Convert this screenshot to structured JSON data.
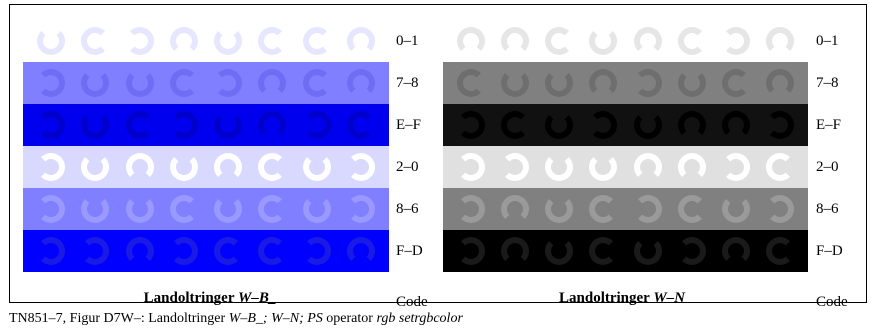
{
  "left_panel": {
    "title_prefix": "Landoltringer ",
    "title_italic": "W–B_",
    "code_label": "Code",
    "rows": [
      {
        "code": "0–1",
        "bg": "#ffffff",
        "ring": "#e6e6ff",
        "gaps": [
          "up",
          "right",
          "left",
          "down",
          "up",
          "right",
          "right",
          "down"
        ]
      },
      {
        "code": "7–8",
        "bg": "#7f7fff",
        "ring": "#6e6ef5",
        "gaps": [
          "left",
          "up",
          "up",
          "right",
          "left",
          "down",
          "right",
          "down"
        ]
      },
      {
        "code": "E–F",
        "bg": "#0000ef",
        "ring": "#0000cc",
        "gaps": [
          "left",
          "up",
          "right",
          "left",
          "up",
          "down",
          "left",
          "right"
        ]
      },
      {
        "code": "2–0",
        "bg": "#d9d9ff",
        "ring": "#ffffff",
        "gaps": [
          "left",
          "up",
          "down",
          "up",
          "down",
          "right",
          "up",
          "left"
        ]
      },
      {
        "code": "8–6",
        "bg": "#7f7fff",
        "ring": "#9999ff",
        "gaps": [
          "left",
          "up",
          "up",
          "right",
          "up",
          "right",
          "up",
          "left"
        ]
      },
      {
        "code": "F–D",
        "bg": "#0000ff",
        "ring": "#1a1ae6",
        "gaps": [
          "left",
          "left",
          "down",
          "left",
          "right",
          "right",
          "left",
          "down"
        ]
      }
    ]
  },
  "right_panel": {
    "title_prefix": "Landoltringer ",
    "title_italic": "W–N",
    "code_label": "Code",
    "rows": [
      {
        "code": "0–1",
        "bg": "#ffffff",
        "ring": "#e6e6e6",
        "gaps": [
          "down",
          "down",
          "right",
          "up",
          "down",
          "right",
          "left",
          "down"
        ]
      },
      {
        "code": "7–8",
        "bg": "#808080",
        "ring": "#6e6e6e",
        "gaps": [
          "right",
          "up",
          "up",
          "down",
          "left",
          "up",
          "right",
          "down"
        ]
      },
      {
        "code": "E–F",
        "bg": "#111111",
        "ring": "#000000",
        "gaps": [
          "left",
          "right",
          "up",
          "left",
          "up",
          "down",
          "down",
          "left"
        ]
      },
      {
        "code": "2–0",
        "bg": "#e0e0e0",
        "ring": "#ffffff",
        "gaps": [
          "left",
          "left",
          "up",
          "up",
          "down",
          "down",
          "left",
          "right"
        ]
      },
      {
        "code": "8–6",
        "bg": "#808080",
        "ring": "#9a9a9a",
        "gaps": [
          "left",
          "down",
          "up",
          "right",
          "left",
          "right",
          "up",
          "left"
        ]
      },
      {
        "code": "F–D",
        "bg": "#000000",
        "ring": "#1a1a1a",
        "gaps": [
          "left",
          "down",
          "up",
          "right",
          "up",
          "left",
          "down",
          "right"
        ]
      }
    ]
  },
  "caption": {
    "prefix": "TN851–7, Figur D7W–: Landoltringer ",
    "italic": "W–B_; W–N; PS",
    "mid": " operator ",
    "italic2": "rgb setrgbcolor"
  }
}
